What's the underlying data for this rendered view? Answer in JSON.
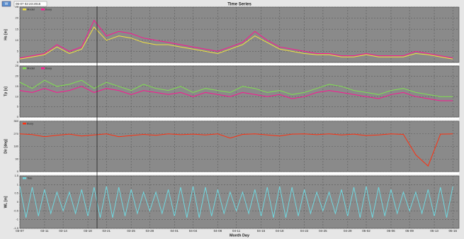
{
  "header": {
    "button": "W",
    "timestamp": "06-07 02:23:2015",
    "title": "Time Series"
  },
  "chart_data": [
    {
      "type": "line",
      "ylabel": "Hs [m]",
      "ylim": [
        0,
        25
      ],
      "yticks": [
        0,
        5,
        10,
        15,
        20,
        25
      ],
      "x": [
        0,
        2,
        4,
        6,
        8,
        10,
        12,
        14,
        16,
        18,
        20,
        22,
        24,
        26,
        28,
        30,
        32,
        34,
        36,
        38,
        40,
        42,
        44,
        46,
        48,
        50,
        52,
        54,
        56,
        58,
        60,
        62,
        64,
        66,
        68,
        70
      ],
      "series": [
        {
          "name": "Model",
          "color": "#f0e040",
          "values": [
            1.5,
            2.5,
            3.5,
            7,
            4,
            6,
            16,
            10,
            12,
            11,
            9,
            8,
            8,
            7,
            6,
            5,
            4,
            6,
            8,
            12,
            9,
            6,
            5,
            4,
            3.5,
            3.5,
            2.5,
            2.5,
            3.5,
            2.5,
            2.5,
            2.5,
            4,
            3.5,
            2.5,
            1.5
          ]
        },
        {
          "name": "Buoy",
          "color": "#ff1493",
          "values": [
            2,
            3,
            4,
            8,
            5,
            7,
            19,
            12,
            14,
            13,
            11,
            10,
            9,
            8,
            7,
            6,
            5,
            7,
            9,
            14,
            10,
            7,
            6,
            5,
            4,
            4,
            3,
            3,
            4,
            3,
            3,
            3,
            5,
            4,
            3,
            2
          ]
        }
      ]
    },
    {
      "type": "line",
      "ylabel": "Tp [s]",
      "ylim": [
        0,
        25
      ],
      "yticks": [
        0,
        5,
        10,
        15,
        20,
        25
      ],
      "x": [
        0,
        2,
        4,
        6,
        8,
        10,
        12,
        14,
        16,
        18,
        20,
        22,
        24,
        26,
        28,
        30,
        32,
        34,
        36,
        38,
        40,
        42,
        44,
        46,
        48,
        50,
        52,
        54,
        56,
        58,
        60,
        62,
        64,
        66,
        68,
        70
      ],
      "series": [
        {
          "name": "Model",
          "color": "#7fe050",
          "values": [
            17,
            14,
            18,
            15,
            16,
            18,
            14,
            17,
            15,
            13,
            16,
            14,
            13,
            15,
            12,
            14,
            13,
            12,
            15,
            14,
            12,
            13,
            11,
            12,
            14,
            16,
            15,
            13,
            12,
            11,
            13,
            14,
            12,
            11,
            10,
            10
          ]
        },
        {
          "name": "Buoy",
          "color": "#ff1493",
          "values": [
            13,
            12,
            14,
            12,
            13,
            15,
            12,
            14,
            13,
            11,
            13,
            12,
            11,
            12,
            10,
            12,
            11,
            10,
            12,
            11,
            10,
            11,
            9,
            10,
            12,
            13,
            12,
            11,
            10,
            9,
            11,
            12,
            10,
            9,
            8,
            8
          ]
        }
      ]
    },
    {
      "type": "line",
      "ylabel": "Dir [deg]",
      "ylim": [
        0,
        360
      ],
      "yticks": [
        0,
        90,
        180,
        270,
        360
      ],
      "x": [
        0,
        2,
        4,
        6,
        8,
        10,
        12,
        14,
        16,
        18,
        20,
        22,
        24,
        26,
        28,
        30,
        32,
        34,
        36,
        38,
        40,
        42,
        44,
        46,
        48,
        50,
        52,
        54,
        56,
        58,
        60,
        62,
        64,
        66,
        68,
        70
      ],
      "series": [
        {
          "name": "Buoy",
          "color": "#ff3010",
          "values": [
            270,
            265,
            250,
            260,
            268,
            255,
            262,
            270,
            250,
            258,
            266,
            260,
            270,
            264,
            268,
            262,
            270,
            240,
            266,
            270,
            262,
            255,
            268,
            270,
            264,
            270,
            262,
            268,
            258,
            262,
            270,
            266,
            120,
            40,
            268,
            270
          ]
        }
      ]
    },
    {
      "type": "line",
      "ylabel": "WL [m]",
      "xlabel": "Month Day",
      "xlim": [
        0,
        71
      ],
      "ylim": [
        -1.5,
        1.5
      ],
      "yticks": [
        -1.5,
        -1,
        -0.5,
        0,
        0.5,
        1,
        1.5
      ],
      "xticks": [
        {
          "value": 0,
          "label": "03-07"
        },
        {
          "value": 4,
          "label": "03-11"
        },
        {
          "value": 7,
          "label": "03-14"
        },
        {
          "value": 11,
          "label": "03-18"
        },
        {
          "value": 14,
          "label": "03-21"
        },
        {
          "value": 18,
          "label": "03-25"
        },
        {
          "value": 21,
          "label": "03-28"
        },
        {
          "value": 25,
          "label": "04-01"
        },
        {
          "value": 28,
          "label": "04-04"
        },
        {
          "value": 32,
          "label": "04-08"
        },
        {
          "value": 35,
          "label": "04-11"
        },
        {
          "value": 39,
          "label": "04-15"
        },
        {
          "value": 42,
          "label": "04-18"
        },
        {
          "value": 46,
          "label": "04-22"
        },
        {
          "value": 49,
          "label": "04-25"
        },
        {
          "value": 53,
          "label": "04-29"
        },
        {
          "value": 56,
          "label": "05-02"
        },
        {
          "value": 60,
          "label": "05-06"
        },
        {
          "value": 63,
          "label": "05-09"
        },
        {
          "value": 67,
          "label": "05-13"
        },
        {
          "value": 70,
          "label": "05-16"
        }
      ],
      "x": [
        0,
        1,
        2,
        3,
        4,
        5,
        6,
        7,
        8,
        9,
        10,
        11,
        12,
        13,
        14,
        15,
        16,
        17,
        18,
        19,
        20,
        21,
        22,
        23,
        24,
        25,
        26,
        27,
        28,
        29,
        30,
        31,
        32,
        33,
        34,
        35,
        36,
        37,
        38,
        39,
        40,
        41,
        42,
        43,
        44,
        45,
        46,
        47,
        48,
        49,
        50,
        51,
        52,
        53,
        54,
        55,
        56,
        57,
        58,
        59,
        60,
        61,
        62,
        63,
        64,
        65,
        66,
        67,
        68,
        69,
        70
      ],
      "series": [
        {
          "name": "Tide",
          "color": "#70d8e0",
          "values": [
            0.9,
            -0.89,
            0.85,
            -0.8,
            0.72,
            -0.65,
            0.57,
            -0.5,
            0.57,
            -0.65,
            0.72,
            -0.8,
            0.85,
            -0.89,
            0.9,
            -0.89,
            0.85,
            -0.8,
            0.72,
            -0.65,
            0.57,
            -0.5,
            0.57,
            -0.65,
            0.72,
            -0.8,
            0.85,
            -0.89,
            0.9,
            -0.89,
            0.85,
            -0.8,
            0.72,
            -0.65,
            0.57,
            -0.5,
            0.57,
            -0.65,
            0.72,
            -0.8,
            0.85,
            -0.89,
            0.9,
            -0.89,
            0.85,
            -0.8,
            0.72,
            -0.65,
            0.57,
            -0.5,
            0.57,
            -0.65,
            0.72,
            -0.8,
            0.85,
            -0.89,
            0.9,
            -0.89,
            0.85,
            -0.8,
            0.72,
            -0.65,
            0.57,
            -0.5,
            0.57,
            -0.65,
            0.72,
            -0.8,
            0.85,
            -0.89,
            0.9
          ]
        }
      ]
    }
  ]
}
